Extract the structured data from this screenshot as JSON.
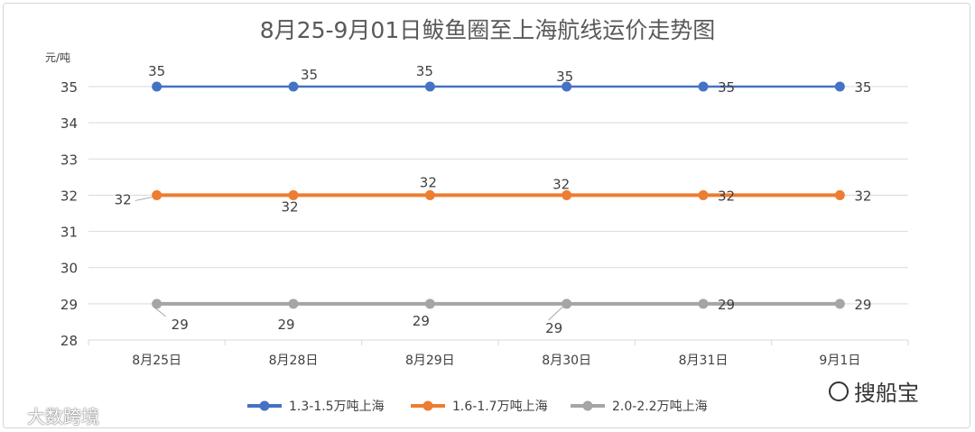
{
  "chart_data": {
    "type": "line",
    "title": "8月25-9月01日鲅鱼圈至上海航线运价走势图",
    "unit_label": "元/吨",
    "categories": [
      "8月25日",
      "8月28日",
      "8月29日",
      "8月30日",
      "8月31日",
      "9月1日"
    ],
    "ylim": [
      28,
      35
    ],
    "yticks": [
      28,
      29,
      30,
      31,
      32,
      33,
      34,
      35
    ],
    "grid": true,
    "legend_position": "bottom",
    "series": [
      {
        "name": "1.3-1.5万吨上海",
        "color": "#4472c4",
        "values": [
          35,
          35,
          35,
          35,
          35,
          35
        ]
      },
      {
        "name": "1.6-1.7万吨上海",
        "color": "#ed7d31",
        "values": [
          32,
          32,
          32,
          32,
          32,
          32
        ]
      },
      {
        "name": "2.0-2.2万吨上海",
        "color": "#a5a5a5",
        "values": [
          29,
          29,
          29,
          29,
          29,
          29
        ]
      }
    ]
  },
  "watermarks": {
    "left_text": "大数跨境",
    "right_text": "搜船宝",
    "left_icon": "weibo-icon",
    "right_icon": "wechat-icon"
  }
}
